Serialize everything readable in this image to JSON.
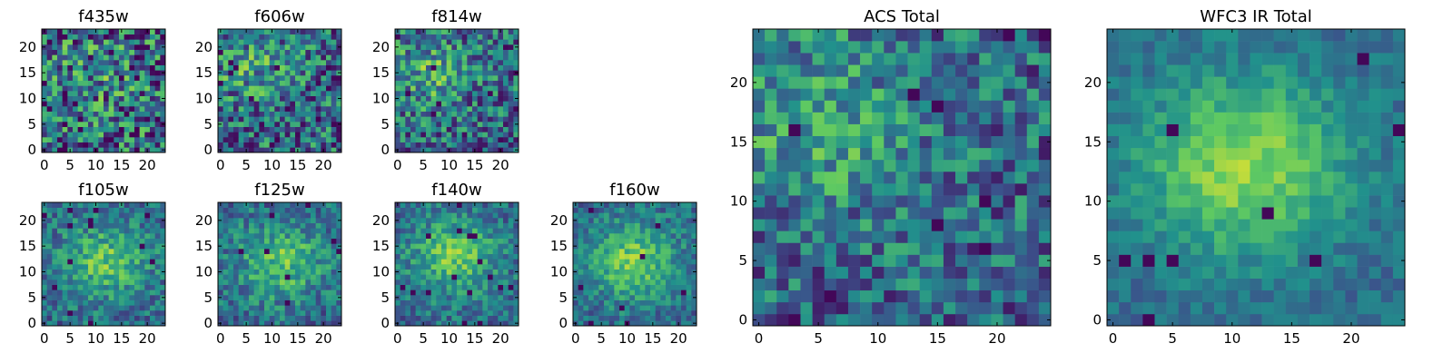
{
  "figure": {
    "colormap": [
      "#440154",
      "#3b528b",
      "#21918c",
      "#5ec962",
      "#fde725"
    ]
  },
  "chart_data": [
    {
      "type": "heatmap",
      "id": "f435w",
      "title": "f435w",
      "grid": [
        24,
        24
      ],
      "xlim": [
        0,
        24
      ],
      "ylim": [
        0,
        24
      ],
      "xticks": [
        0,
        5,
        10,
        15,
        20
      ],
      "yticks": [
        0,
        5,
        10,
        15,
        20
      ],
      "values": [],
      "trend": {
        "seed": 11,
        "blob_x": 9,
        "blob_y": 15,
        "strength": 0.18,
        "noise": 0.85
      }
    },
    {
      "type": "heatmap",
      "id": "f606w",
      "title": "f606w",
      "grid": [
        24,
        24
      ],
      "xlim": [
        0,
        24
      ],
      "ylim": [
        0,
        24
      ],
      "xticks": [
        0,
        5,
        10,
        15,
        20
      ],
      "yticks": [
        0,
        5,
        10,
        15,
        20
      ],
      "values": [],
      "trend": {
        "seed": 23,
        "blob_x": 6,
        "blob_y": 16,
        "strength": 0.35,
        "noise": 0.7
      }
    },
    {
      "type": "heatmap",
      "id": "f814w",
      "title": "f814w",
      "grid": [
        24,
        24
      ],
      "xlim": [
        0,
        24
      ],
      "ylim": [
        0,
        24
      ],
      "xticks": [
        0,
        5,
        10,
        15,
        20
      ],
      "yticks": [
        0,
        5,
        10,
        15,
        20
      ],
      "values": [],
      "trend": {
        "seed": 37,
        "blob_x": 6,
        "blob_y": 15,
        "strength": 0.4,
        "noise": 0.65
      }
    },
    {
      "type": "heatmap",
      "id": "f105w",
      "title": "f105w",
      "grid": [
        24,
        24
      ],
      "xlim": [
        0,
        24
      ],
      "ylim": [
        0,
        24
      ],
      "xticks": [
        0,
        5,
        10,
        15,
        20
      ],
      "yticks": [
        0,
        5,
        10,
        15,
        20
      ],
      "values": [],
      "trend": {
        "seed": 41,
        "blob_x": 12,
        "blob_y": 12,
        "strength": 0.6,
        "noise": 0.4
      }
    },
    {
      "type": "heatmap",
      "id": "f125w",
      "title": "f125w",
      "grid": [
        24,
        24
      ],
      "xlim": [
        0,
        24
      ],
      "ylim": [
        0,
        24
      ],
      "xticks": [
        0,
        5,
        10,
        15,
        20
      ],
      "yticks": [
        0,
        5,
        10,
        15,
        20
      ],
      "values": [],
      "trend": {
        "seed": 53,
        "blob_x": 12,
        "blob_y": 12,
        "strength": 0.6,
        "noise": 0.42
      }
    },
    {
      "type": "heatmap",
      "id": "f140w",
      "title": "f140w",
      "grid": [
        24,
        24
      ],
      "xlim": [
        0,
        24
      ],
      "ylim": [
        0,
        24
      ],
      "xticks": [
        0,
        5,
        10,
        15,
        20
      ],
      "yticks": [
        0,
        5,
        10,
        15,
        20
      ],
      "values": [],
      "trend": {
        "seed": 67,
        "blob_x": 11,
        "blob_y": 13,
        "strength": 0.65,
        "noise": 0.38
      }
    },
    {
      "type": "heatmap",
      "id": "f160w",
      "title": "f160w",
      "grid": [
        24,
        24
      ],
      "xlim": [
        0,
        24
      ],
      "ylim": [
        0,
        24
      ],
      "xticks": [
        0,
        5,
        10,
        15,
        20
      ],
      "yticks": [
        0,
        5,
        10,
        15,
        20
      ],
      "values": [],
      "trend": {
        "seed": 79,
        "blob_x": 11,
        "blob_y": 12,
        "strength": 0.7,
        "noise": 0.35
      }
    },
    {
      "type": "heatmap",
      "id": "acs-total",
      "title": "ACS Total",
      "grid": [
        25,
        25
      ],
      "xlim": [
        0,
        25
      ],
      "ylim": [
        0,
        25
      ],
      "xticks": [
        0,
        5,
        10,
        15,
        20
      ],
      "yticks": [
        0,
        5,
        10,
        15,
        20
      ],
      "values": [],
      "trend": {
        "seed": 91,
        "blob_x": 5,
        "blob_y": 17,
        "strength": 0.4,
        "noise": 0.55
      }
    },
    {
      "type": "heatmap",
      "id": "wfc3-ir-total",
      "title": "WFC3 IR Total",
      "grid": [
        25,
        25
      ],
      "xlim": [
        0,
        25
      ],
      "ylim": [
        0,
        25
      ],
      "xticks": [
        0,
        5,
        10,
        15,
        20
      ],
      "yticks": [
        0,
        5,
        10,
        15,
        20
      ],
      "values": [],
      "trend": {
        "seed": 103,
        "blob_x": 11,
        "blob_y": 13,
        "strength": 0.8,
        "noise": 0.22
      }
    }
  ]
}
